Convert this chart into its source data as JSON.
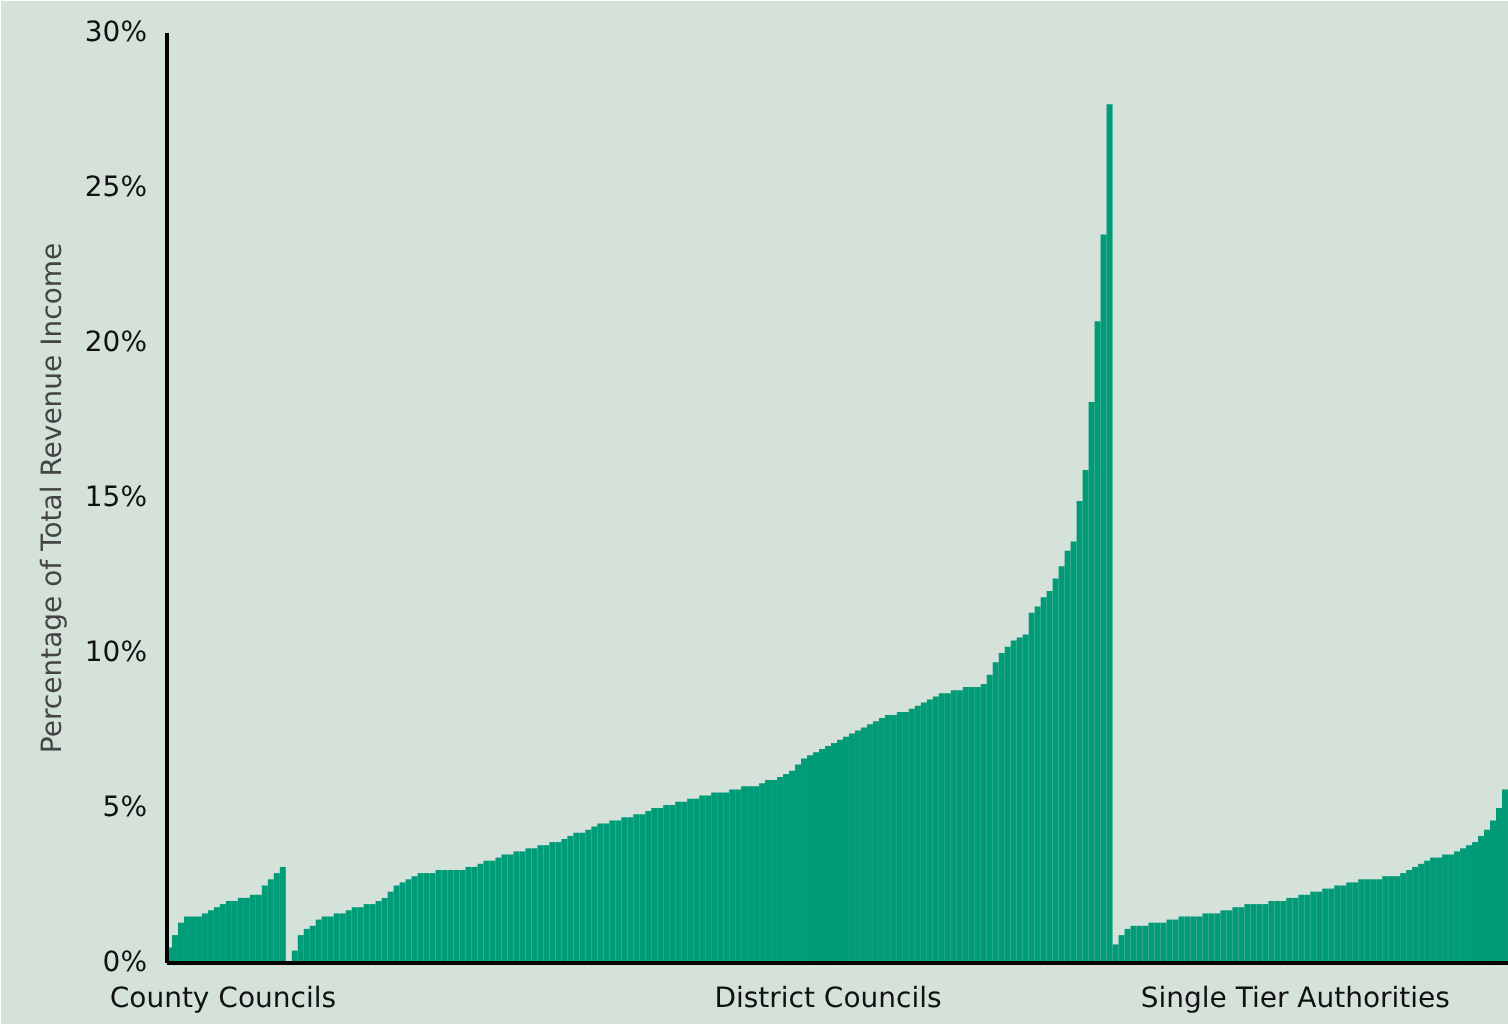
{
  "chart_data": {
    "type": "bar",
    "ylabel": "Percentage of Total Revenue Income",
    "color": "#009b77",
    "grid": false,
    "ylim": [
      0,
      30
    ],
    "yticks": [
      {
        "value": 0,
        "label": "0%"
      },
      {
        "value": 5,
        "label": "5%"
      },
      {
        "value": 10,
        "label": "10%"
      },
      {
        "value": 15,
        "label": "15%"
      },
      {
        "value": 20,
        "label": "20%"
      },
      {
        "value": 25,
        "label": "25%"
      },
      {
        "value": 30,
        "label": "30%"
      }
    ],
    "categories": [
      null,
      null,
      null,
      null,
      null,
      null,
      null,
      null,
      null,
      "County Councils",
      null,
      null,
      null,
      null,
      null,
      null,
      null,
      null,
      null,
      null,
      null,
      null,
      null,
      null,
      null,
      null,
      null,
      null,
      null,
      null,
      null,
      null,
      null,
      null,
      null,
      null,
      null,
      null,
      null,
      null,
      null,
      null,
      null,
      null,
      null,
      null,
      null,
      null,
      null,
      null,
      null,
      null,
      null,
      null,
      null,
      null,
      null,
      null,
      null,
      null,
      null,
      null,
      null,
      null,
      null,
      null,
      null,
      null,
      null,
      null,
      null,
      null,
      null,
      null,
      null,
      null,
      null,
      null,
      null,
      null,
      null,
      null,
      null,
      null,
      null,
      null,
      null,
      null,
      null,
      null,
      null,
      null,
      null,
      null,
      null,
      null,
      null,
      null,
      null,
      null,
      null,
      null,
      null,
      null,
      null,
      null,
      null,
      null,
      null,
      null,
      "District Councils",
      null,
      null,
      null,
      null,
      null,
      null,
      null,
      null,
      null,
      null,
      null,
      null,
      null,
      null,
      null,
      null,
      null,
      null,
      null,
      null,
      null,
      null,
      null,
      null,
      null,
      null,
      null,
      null,
      null,
      null,
      null,
      null,
      null,
      null,
      null,
      null,
      null,
      null,
      null,
      null,
      null,
      null,
      null,
      null,
      null,
      null,
      null,
      null,
      null,
      null,
      null,
      null,
      null,
      null,
      null,
      null,
      null,
      null,
      null,
      null,
      null,
      null,
      null,
      null,
      null,
      null,
      null,
      null,
      null,
      null,
      null,
      null,
      null,
      null,
      null,
      null,
      null,
      "Single Tier Authorities",
      null,
      null,
      null,
      null,
      null,
      null,
      null,
      null,
      null,
      null,
      null,
      null,
      null,
      null,
      null,
      null,
      null,
      null,
      null,
      null,
      null,
      null,
      null,
      null,
      null,
      null,
      null,
      null,
      null,
      null,
      null,
      null,
      null,
      null,
      null
    ],
    "values": [
      0.5,
      0.9,
      1.3,
      1.5,
      1.5,
      1.5,
      1.6,
      1.7,
      1.8,
      1.9,
      2.0,
      2.0,
      2.1,
      2.1,
      2.2,
      2.2,
      2.5,
      2.7,
      2.9,
      3.1,
      null,
      0.4,
      0.9,
      1.1,
      1.2,
      1.4,
      1.5,
      1.5,
      1.6,
      1.6,
      1.7,
      1.8,
      1.8,
      1.9,
      1.9,
      2.0,
      2.1,
      2.3,
      2.5,
      2.6,
      2.7,
      2.8,
      2.9,
      2.9,
      2.9,
      3.0,
      3.0,
      3.0,
      3.0,
      3.0,
      3.1,
      3.1,
      3.2,
      3.3,
      3.3,
      3.4,
      3.5,
      3.5,
      3.6,
      3.6,
      3.7,
      3.7,
      3.8,
      3.8,
      3.9,
      3.9,
      4.0,
      4.1,
      4.2,
      4.2,
      4.3,
      4.4,
      4.5,
      4.5,
      4.6,
      4.6,
      4.7,
      4.7,
      4.8,
      4.8,
      4.9,
      5.0,
      5.0,
      5.1,
      5.1,
      5.2,
      5.2,
      5.3,
      5.3,
      5.4,
      5.4,
      5.5,
      5.5,
      5.5,
      5.6,
      5.6,
      5.7,
      5.7,
      5.7,
      5.8,
      5.9,
      5.9,
      6.0,
      6.1,
      6.2,
      6.4,
      6.6,
      6.7,
      6.8,
      6.9,
      7.0,
      7.1,
      7.2,
      7.3,
      7.4,
      7.5,
      7.6,
      7.7,
      7.8,
      7.9,
      8.0,
      8.0,
      8.1,
      8.1,
      8.2,
      8.3,
      8.4,
      8.5,
      8.6,
      8.7,
      8.7,
      8.8,
      8.8,
      8.9,
      8.9,
      8.9,
      9.0,
      9.3,
      9.7,
      10.0,
      10.2,
      10.4,
      10.5,
      10.6,
      11.3,
      11.5,
      11.8,
      12.0,
      12.4,
      12.8,
      13.3,
      13.6,
      14.9,
      15.9,
      18.1,
      20.7,
      23.5,
      27.7,
      0.6,
      0.9,
      1.1,
      1.2,
      1.2,
      1.2,
      1.3,
      1.3,
      1.3,
      1.4,
      1.4,
      1.5,
      1.5,
      1.5,
      1.5,
      1.6,
      1.6,
      1.6,
      1.7,
      1.7,
      1.8,
      1.8,
      1.9,
      1.9,
      1.9,
      1.9,
      2.0,
      2.0,
      2.0,
      2.1,
      2.1,
      2.2,
      2.2,
      2.3,
      2.3,
      2.4,
      2.4,
      2.5,
      2.5,
      2.6,
      2.6,
      2.7,
      2.7,
      2.7,
      2.7,
      2.8,
      2.8,
      2.8,
      2.9,
      3.0,
      3.1,
      3.2,
      3.3,
      3.4,
      3.4,
      3.5,
      3.5,
      3.6,
      3.7,
      3.8,
      3.9,
      4.1,
      4.3,
      4.6,
      5.0,
      5.6
    ]
  }
}
